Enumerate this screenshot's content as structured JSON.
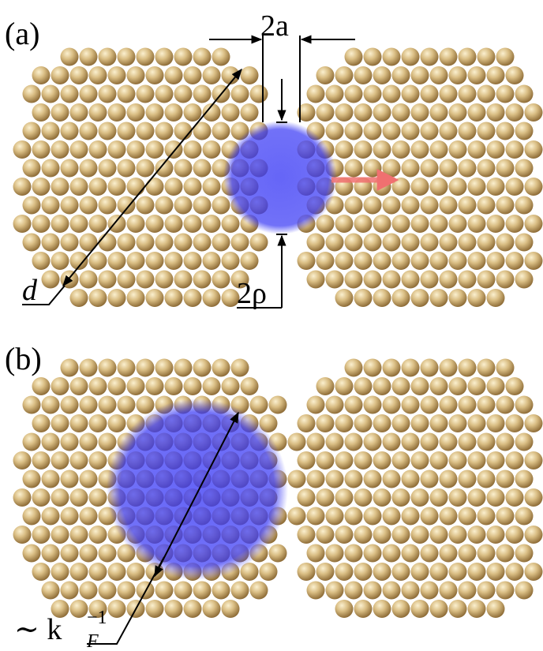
{
  "panel_a": {
    "label": "(a)",
    "width_label": "2a",
    "diameter_label": "d",
    "radius_label": "2ρ"
  },
  "panel_b": {
    "label": "(b)",
    "prefix": "∼ k",
    "subscript": "F",
    "superscript": "−1"
  }
}
